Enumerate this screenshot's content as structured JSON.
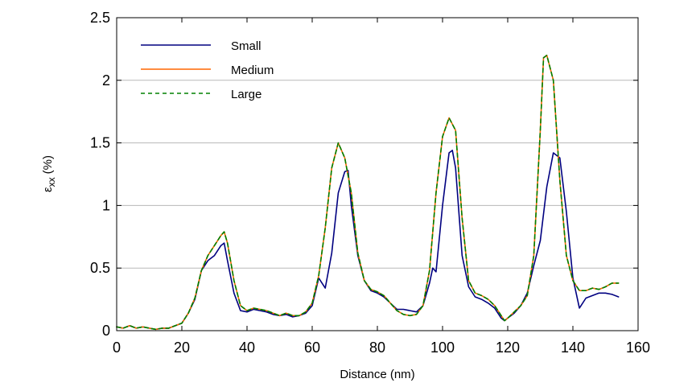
{
  "chart_data": {
    "type": "line",
    "xlabel": "Distance (nm)",
    "ylabel": "ε",
    "ylabel_subscript": "xx",
    "ylabel_unit": "(%)",
    "xlim": [
      0,
      160
    ],
    "ylim": [
      0,
      2.5
    ],
    "xticks": [
      0,
      20,
      40,
      60,
      80,
      100,
      120,
      140,
      160
    ],
    "yticks": [
      0,
      0.5,
      1,
      1.5,
      2,
      2.5
    ],
    "xtick_labels": [
      "0",
      "20",
      "40",
      "60",
      "80",
      "100",
      "120",
      "140",
      "160"
    ],
    "ytick_labels": [
      "0",
      "0.5",
      "1",
      "1.5",
      "2",
      "2.5"
    ],
    "grid": "horizontal",
    "legend_position": "top-left",
    "series": [
      {
        "name": "Small",
        "color": "#000080",
        "dash": "solid",
        "x": [
          0,
          2,
          4,
          6,
          8,
          10,
          12,
          14,
          16,
          18,
          20,
          22,
          24,
          26,
          28,
          30,
          32,
          33,
          34,
          36,
          38,
          40,
          42,
          44,
          46,
          48,
          50,
          52,
          54,
          56,
          58,
          60,
          62,
          64,
          66,
          68,
          70,
          71,
          72,
          74,
          76,
          78,
          80,
          82,
          84,
          86,
          88,
          90,
          92,
          94,
          96,
          97,
          98,
          100,
          102,
          103,
          104,
          106,
          108,
          110,
          112,
          114,
          116,
          118,
          119,
          120,
          122,
          124,
          126,
          128,
          130,
          132,
          134,
          136,
          138,
          140,
          142,
          144,
          146,
          148,
          150,
          152,
          154
        ],
        "values": [
          0.03,
          0.02,
          0.04,
          0.02,
          0.03,
          0.02,
          0.01,
          0.02,
          0.02,
          0.04,
          0.06,
          0.14,
          0.25,
          0.48,
          0.56,
          0.6,
          0.68,
          0.7,
          0.56,
          0.3,
          0.16,
          0.15,
          0.17,
          0.16,
          0.15,
          0.13,
          0.12,
          0.13,
          0.11,
          0.12,
          0.14,
          0.2,
          0.42,
          0.34,
          0.62,
          1.1,
          1.27,
          1.28,
          1.0,
          0.6,
          0.4,
          0.32,
          0.3,
          0.27,
          0.22,
          0.17,
          0.17,
          0.16,
          0.15,
          0.2,
          0.38,
          0.5,
          0.47,
          1.0,
          1.42,
          1.44,
          1.3,
          0.6,
          0.35,
          0.27,
          0.25,
          0.22,
          0.18,
          0.1,
          0.08,
          0.1,
          0.14,
          0.2,
          0.3,
          0.52,
          0.72,
          1.15,
          1.42,
          1.38,
          0.95,
          0.42,
          0.18,
          0.26,
          0.28,
          0.3,
          0.3,
          0.29,
          0.27
        ]
      },
      {
        "name": "Medium",
        "color": "#ff6600",
        "dash": "solid",
        "x": [
          0,
          2,
          4,
          6,
          8,
          10,
          12,
          14,
          16,
          18,
          20,
          22,
          24,
          26,
          28,
          30,
          32,
          33,
          34,
          36,
          38,
          40,
          42,
          44,
          46,
          48,
          50,
          52,
          54,
          56,
          58,
          60,
          62,
          64,
          66,
          68,
          70,
          72,
          74,
          76,
          78,
          80,
          82,
          84,
          86,
          88,
          90,
          92,
          94,
          96,
          98,
          100,
          102,
          104,
          106,
          108,
          110,
          112,
          114,
          116,
          118,
          119,
          120,
          122,
          124,
          126,
          128,
          130,
          131,
          132,
          134,
          136,
          138,
          140,
          142,
          144,
          146,
          148,
          150,
          152,
          154
        ],
        "values": [
          0.03,
          0.02,
          0.04,
          0.02,
          0.03,
          0.02,
          0.01,
          0.02,
          0.02,
          0.04,
          0.06,
          0.14,
          0.26,
          0.48,
          0.6,
          0.68,
          0.76,
          0.79,
          0.7,
          0.4,
          0.2,
          0.16,
          0.18,
          0.17,
          0.16,
          0.14,
          0.12,
          0.14,
          0.12,
          0.12,
          0.15,
          0.22,
          0.44,
          0.82,
          1.3,
          1.5,
          1.38,
          1.1,
          0.62,
          0.4,
          0.33,
          0.31,
          0.28,
          0.22,
          0.16,
          0.13,
          0.12,
          0.13,
          0.2,
          0.48,
          1.1,
          1.55,
          1.7,
          1.6,
          0.9,
          0.4,
          0.3,
          0.28,
          0.25,
          0.2,
          0.12,
          0.08,
          0.1,
          0.15,
          0.2,
          0.28,
          0.6,
          1.6,
          2.18,
          2.2,
          2.0,
          1.2,
          0.6,
          0.4,
          0.32,
          0.32,
          0.34,
          0.33,
          0.35,
          0.38,
          0.38
        ]
      },
      {
        "name": "Large",
        "color": "#008000",
        "dash": "dashed",
        "x": [
          0,
          2,
          4,
          6,
          8,
          10,
          12,
          14,
          16,
          18,
          20,
          22,
          24,
          26,
          28,
          30,
          32,
          33,
          34,
          36,
          38,
          40,
          42,
          44,
          46,
          48,
          50,
          52,
          54,
          56,
          58,
          60,
          62,
          64,
          66,
          68,
          70,
          72,
          74,
          76,
          78,
          80,
          82,
          84,
          86,
          88,
          90,
          92,
          94,
          96,
          98,
          100,
          102,
          104,
          106,
          108,
          110,
          112,
          114,
          116,
          118,
          119,
          120,
          122,
          124,
          126,
          128,
          130,
          131,
          132,
          134,
          136,
          138,
          140,
          142,
          144,
          146,
          148,
          150,
          152,
          154
        ],
        "values": [
          0.03,
          0.02,
          0.04,
          0.02,
          0.03,
          0.02,
          0.01,
          0.02,
          0.02,
          0.04,
          0.06,
          0.14,
          0.26,
          0.48,
          0.6,
          0.68,
          0.76,
          0.79,
          0.7,
          0.4,
          0.2,
          0.16,
          0.18,
          0.17,
          0.16,
          0.14,
          0.12,
          0.14,
          0.12,
          0.12,
          0.15,
          0.22,
          0.44,
          0.82,
          1.3,
          1.5,
          1.38,
          1.1,
          0.62,
          0.4,
          0.33,
          0.31,
          0.28,
          0.22,
          0.16,
          0.13,
          0.12,
          0.13,
          0.2,
          0.48,
          1.1,
          1.55,
          1.7,
          1.6,
          0.9,
          0.4,
          0.3,
          0.28,
          0.25,
          0.2,
          0.12,
          0.08,
          0.1,
          0.15,
          0.2,
          0.28,
          0.6,
          1.6,
          2.18,
          2.2,
          2.0,
          1.2,
          0.6,
          0.4,
          0.32,
          0.32,
          0.34,
          0.33,
          0.35,
          0.38,
          0.38
        ]
      }
    ]
  }
}
